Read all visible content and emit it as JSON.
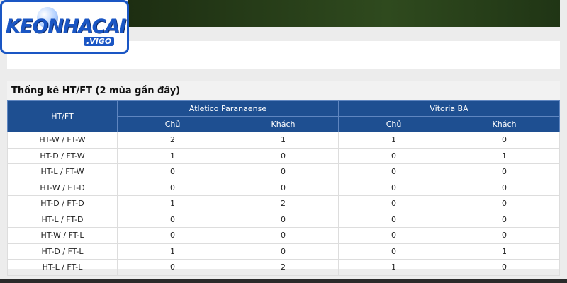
{
  "logo": {
    "brand": "KEONHACAI",
    "suffix": ".VIGO"
  },
  "stats": {
    "title": "Thống kê HT/FT (2 mùa gần đây)",
    "header": {
      "first": "HT/FT",
      "teams": [
        "Atletico Paranaense",
        "Vitoria BA"
      ],
      "sub": [
        "Chủ",
        "Khách",
        "Chủ",
        "Khách"
      ]
    },
    "rows": [
      [
        "HT-W / FT-W",
        2,
        1,
        1,
        0
      ],
      [
        "HT-D / FT-W",
        1,
        0,
        0,
        1
      ],
      [
        "HT-L / FT-W",
        0,
        0,
        0,
        0
      ],
      [
        "HT-W / FT-D",
        0,
        0,
        0,
        0
      ],
      [
        "HT-D / FT-D",
        1,
        2,
        0,
        0
      ],
      [
        "HT-L / FT-D",
        0,
        0,
        0,
        0
      ],
      [
        "HT-W / FT-L",
        0,
        0,
        0,
        0
      ],
      [
        "HT-D / FT-L",
        1,
        0,
        0,
        1
      ],
      [
        "HT-L / FT-L",
        0,
        2,
        1,
        0
      ]
    ]
  }
}
